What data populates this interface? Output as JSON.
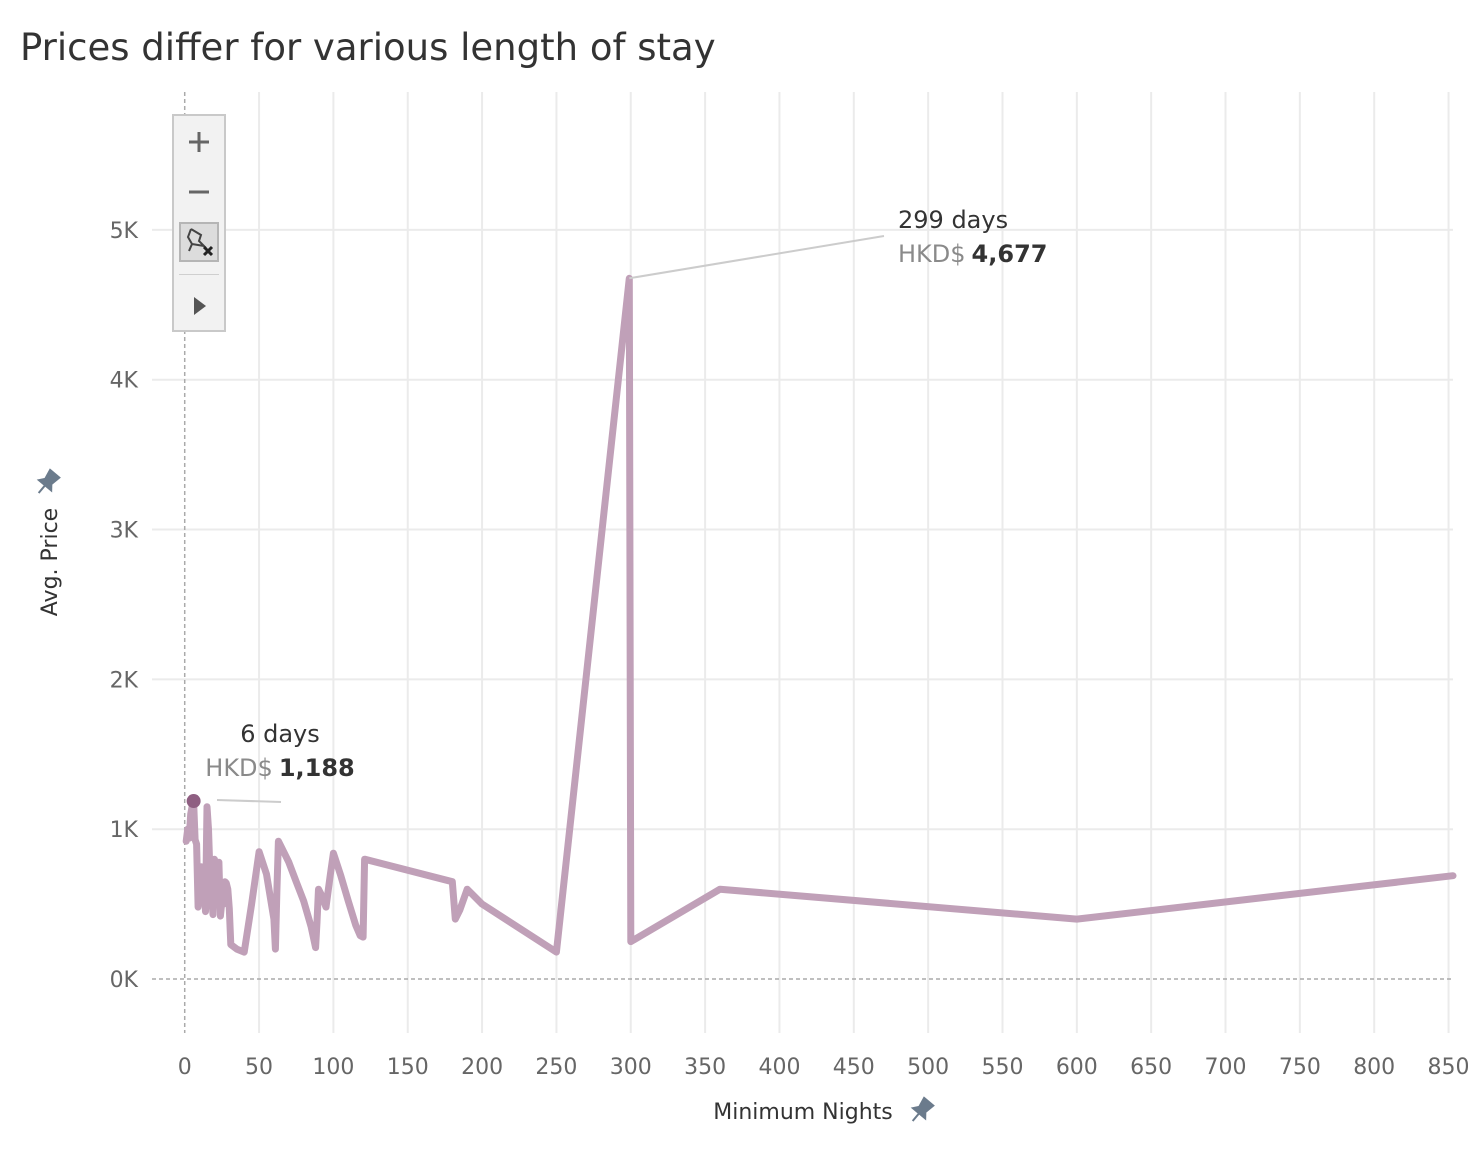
{
  "title": "Prices differ for various length of stay",
  "colors": {
    "line": "#c0a0b8",
    "marker": "#8f5f82",
    "grid": "#ebebeb",
    "zero_line": "#aaaaaa",
    "pin": "#6b7b8c"
  },
  "toolbar": {
    "zoom_in": "plus-icon",
    "zoom_out": "minus-icon",
    "unpin": "unpin-icon",
    "expand": "play-icon"
  },
  "chart_data": {
    "type": "line",
    "title": "Prices differ for various length of stay",
    "xlabel": "Minimum Nights",
    "ylabel": "Avg. Price",
    "xlim": [
      -22,
      853
    ],
    "ylim": [
      -360,
      5920
    ],
    "x_ticks": [
      "0",
      "50",
      "100",
      "150",
      "200",
      "250",
      "300",
      "350",
      "400",
      "450",
      "500",
      "550",
      "600",
      "650",
      "700",
      "750",
      "800",
      "850"
    ],
    "y_ticks": [
      "0K",
      "1K",
      "2K",
      "3K",
      "4K",
      "5K"
    ],
    "grid": true,
    "series": [
      {
        "x": [
          1,
          2,
          3,
          4,
          5,
          6,
          7,
          8,
          9,
          10,
          11,
          12,
          13,
          14,
          15,
          16,
          17,
          18,
          19,
          20,
          21,
          22,
          23,
          24,
          25,
          26,
          27,
          28,
          29,
          30,
          31,
          35,
          40,
          45,
          50,
          55,
          60,
          61,
          62,
          63,
          65,
          70,
          75,
          80,
          85,
          88,
          89,
          90,
          92,
          95,
          98,
          100,
          101,
          105,
          110,
          115,
          118,
          120,
          121,
          180,
          182,
          185,
          190,
          200,
          250,
          299,
          300,
          360,
          600,
          853
        ],
        "values": [
          920,
          1000,
          940,
          1100,
          1150,
          1188,
          930,
          900,
          480,
          600,
          750,
          520,
          640,
          450,
          1150,
          1000,
          700,
          560,
          430,
          800,
          620,
          500,
          780,
          420,
          520,
          500,
          650,
          640,
          600,
          470,
          230,
          200,
          180,
          500,
          850,
          700,
          400,
          200,
          590,
          920,
          880,
          780,
          650,
          520,
          350,
          210,
          380,
          600,
          560,
          480,
          700,
          840,
          810,
          690,
          520,
          360,
          290,
          280,
          800,
          650,
          400,
          460,
          600,
          500,
          180,
          4677,
          250,
          600,
          400,
          690
        ]
      }
    ],
    "annotations": [
      {
        "title": "6 days",
        "prefix": "HKD$",
        "value": "1,188",
        "x": 6,
        "y": 1188
      },
      {
        "title": "299 days",
        "prefix": "HKD$",
        "value": "4,677",
        "x": 299,
        "y": 4677
      }
    ]
  }
}
